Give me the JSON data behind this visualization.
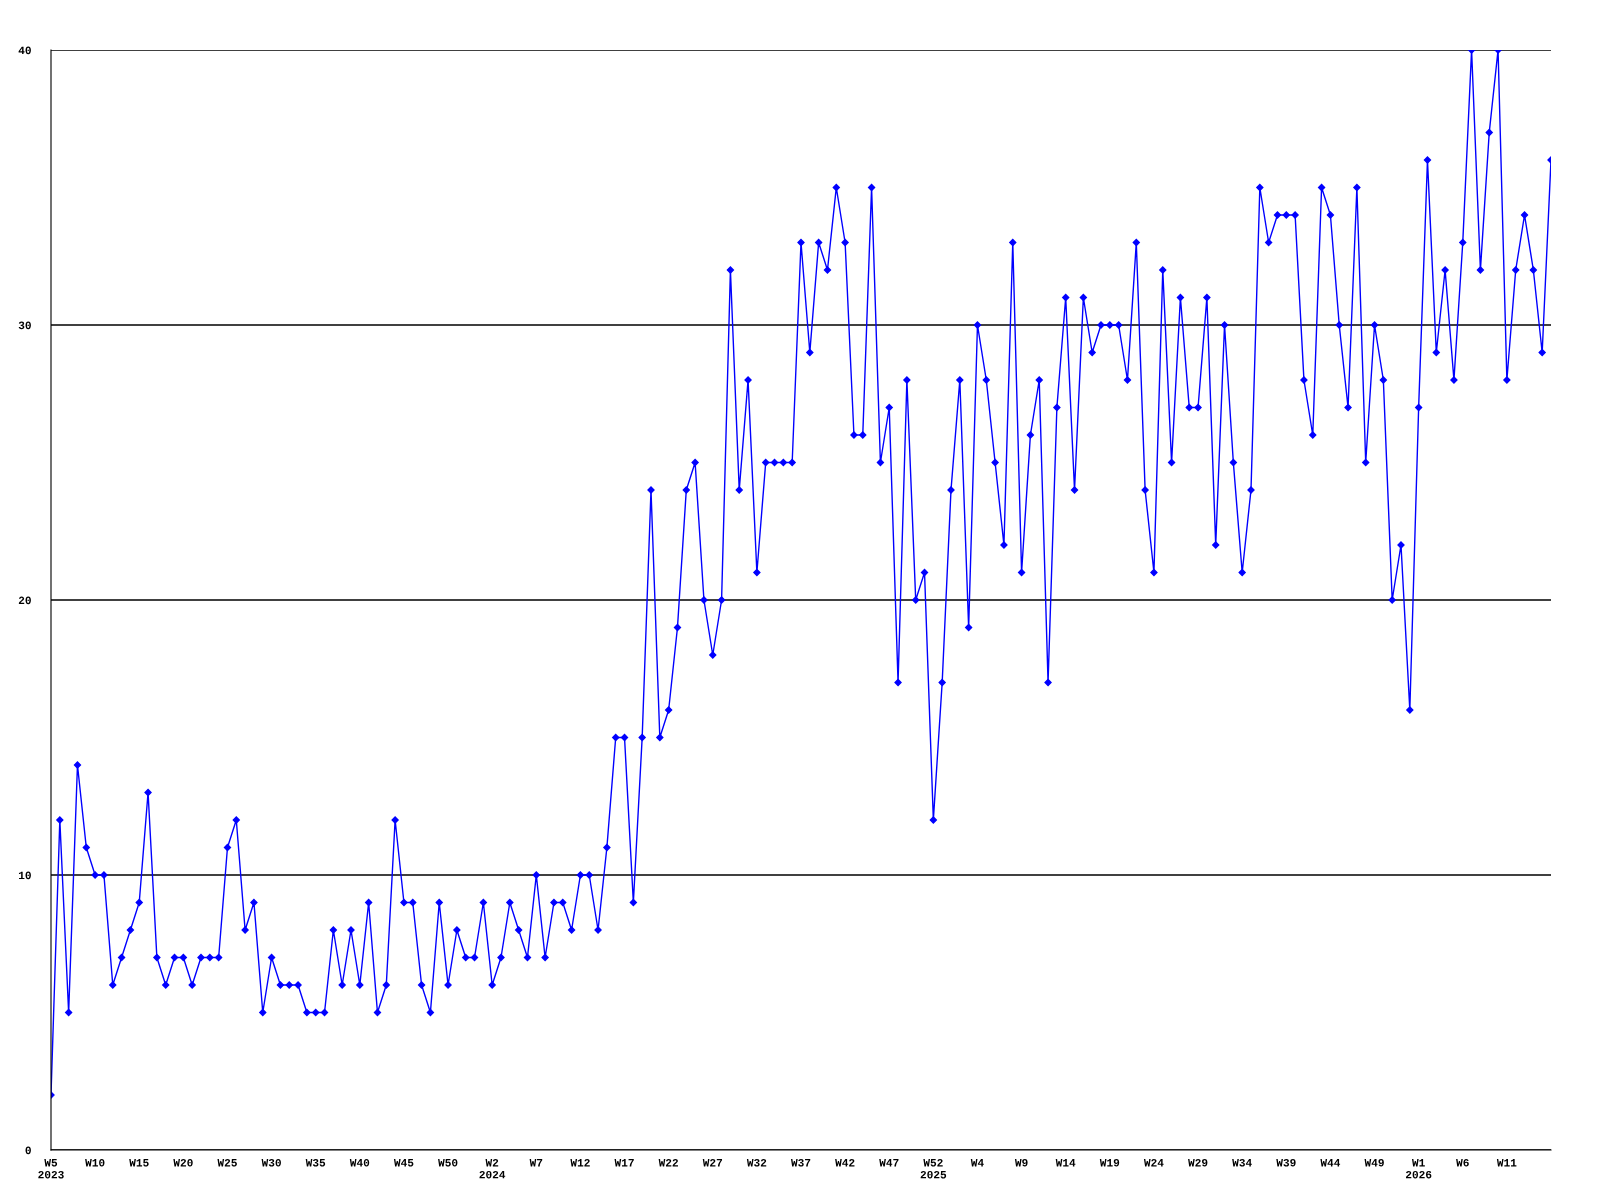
{
  "chart_data": {
    "type": "line",
    "categories": [
      "W5\n2023",
      null,
      null,
      null,
      null,
      "W10",
      null,
      null,
      null,
      null,
      "W15",
      null,
      null,
      null,
      null,
      "W20",
      null,
      null,
      null,
      null,
      "W25",
      null,
      null,
      null,
      null,
      "W30",
      null,
      null,
      null,
      null,
      "W35",
      null,
      null,
      null,
      null,
      "W40",
      null,
      null,
      null,
      null,
      "W45",
      null,
      null,
      null,
      null,
      "W50",
      null,
      null,
      null,
      null,
      "W2\n2024",
      null,
      null,
      null,
      null,
      "W7",
      null,
      null,
      null,
      null,
      "W12",
      null,
      null,
      null,
      null,
      "W17",
      null,
      null,
      null,
      null,
      "W22",
      null,
      null,
      null,
      null,
      "W27",
      null,
      null,
      null,
      null,
      "W32",
      null,
      null,
      null,
      null,
      "W37",
      null,
      null,
      null,
      null,
      "W42",
      null,
      null,
      null,
      null,
      "W47",
      null,
      null,
      null,
      null,
      "W52\n2025",
      null,
      null,
      null,
      null,
      "W4",
      null,
      null,
      null,
      null,
      "W9",
      null,
      null,
      null,
      null,
      "W14",
      null,
      null,
      null,
      null,
      "W19",
      null,
      null,
      null,
      null,
      "W24",
      null,
      null,
      null,
      null,
      "W29",
      null,
      null,
      null,
      null,
      "W34",
      null,
      null,
      null,
      null,
      "W39",
      null,
      null,
      null,
      null,
      "W44",
      null,
      null,
      null,
      null,
      "W49",
      null,
      null,
      null,
      null,
      "W1\n2026",
      null,
      null,
      null,
      null,
      "W6",
      null,
      null,
      null,
      null,
      "W11",
      null,
      null,
      null,
      null,
      null
    ],
    "series": [
      {
        "color": "#0000ff",
        "values": [
          2,
          12,
          5,
          14,
          11,
          10,
          10,
          6,
          7,
          8,
          9,
          13,
          7,
          6,
          7,
          7,
          6,
          7,
          7,
          7,
          11,
          12,
          8,
          9,
          5,
          7,
          6,
          6,
          6,
          5,
          5,
          5,
          8,
          6,
          8,
          6,
          9,
          5,
          6,
          12,
          9,
          9,
          6,
          5,
          9,
          6,
          8,
          7,
          7,
          9,
          6,
          7,
          9,
          8,
          7,
          10,
          7,
          9,
          9,
          8,
          10,
          10,
          8,
          11,
          15,
          15,
          9,
          15,
          24,
          15,
          16,
          19,
          24,
          25,
          20,
          18,
          20,
          32,
          24,
          28,
          21,
          25,
          25,
          25,
          25,
          33,
          29,
          33,
          32,
          35,
          33,
          26,
          26,
          35,
          25,
          27,
          17,
          28,
          20,
          21,
          12,
          17,
          24,
          28,
          19,
          30,
          28,
          25,
          22,
          33,
          21,
          26,
          28,
          17,
          27,
          31,
          24,
          31,
          29,
          30,
          30,
          30,
          28,
          33,
          24,
          21,
          32,
          25,
          31,
          27,
          27,
          31,
          22,
          30,
          25,
          21,
          24,
          35,
          33,
          34,
          34,
          34,
          28,
          26,
          35,
          34,
          30,
          27,
          35,
          25,
          30,
          28,
          20,
          22,
          16,
          27,
          36,
          29,
          32,
          28,
          33,
          40,
          32,
          37,
          40,
          28,
          32,
          34,
          32,
          29,
          36
        ]
      }
    ],
    "ylim": [
      0,
      40
    ],
    "yticks": [
      0,
      10,
      20,
      30,
      40
    ],
    "grid": "y",
    "marker": "diamond",
    "line_style": "solid",
    "legend": false
  }
}
